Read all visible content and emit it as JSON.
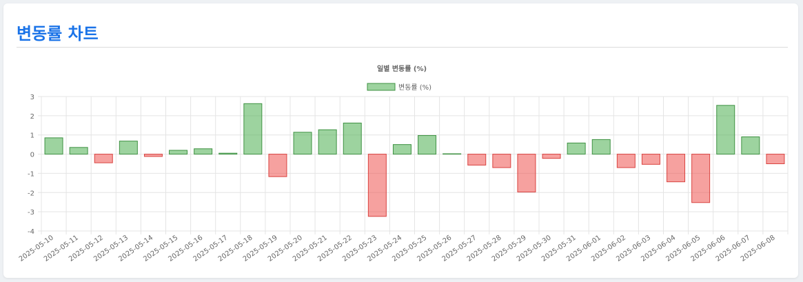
{
  "page_title": "변동률 차트",
  "colors": {
    "title": "#1a73e8",
    "positive_fill": "rgba(76, 175, 80, 0.55)",
    "positive_stroke": "#3e9142",
    "negative_fill": "rgba(239, 83, 80, 0.55)",
    "negative_stroke": "#d9423f",
    "legend_fill": "rgba(76, 175, 80, 0.55)",
    "grid": "#e4e4e4"
  },
  "chart_data": {
    "type": "bar",
    "title": "일별 변동률 (%)",
    "legend": {
      "position": "top",
      "label": "변동률 (%)"
    },
    "ylim": [
      -4,
      3
    ],
    "yticks": [
      3,
      2,
      1,
      0,
      -1,
      -2,
      -3,
      -4
    ],
    "grid": true,
    "categories": [
      "2025-05-10",
      "2025-05-11",
      "2025-05-12",
      "2025-05-13",
      "2025-05-14",
      "2025-05-15",
      "2025-05-16",
      "2025-05-17",
      "2025-05-18",
      "2025-05-19",
      "2025-05-20",
      "2025-05-21",
      "2025-05-22",
      "2025-05-23",
      "2025-05-24",
      "2025-05-25",
      "2025-05-26",
      "2025-05-27",
      "2025-05-28",
      "2025-05-29",
      "2025-05-30",
      "2025-05-31",
      "2025-06-01",
      "2025-06-02",
      "2025-06-03",
      "2025-06-04",
      "2025-06-05",
      "2025-06-06",
      "2025-06-07",
      "2025-06-08"
    ],
    "values": [
      0.85,
      0.35,
      -0.45,
      0.68,
      -0.12,
      0.2,
      0.28,
      0.05,
      2.63,
      -1.17,
      1.14,
      1.27,
      1.62,
      -3.24,
      0.5,
      0.97,
      0.02,
      -0.57,
      -0.7,
      -1.97,
      -0.22,
      0.58,
      0.76,
      -0.7,
      -0.53,
      -1.44,
      -2.52,
      2.54,
      0.9,
      -0.5
    ]
  }
}
